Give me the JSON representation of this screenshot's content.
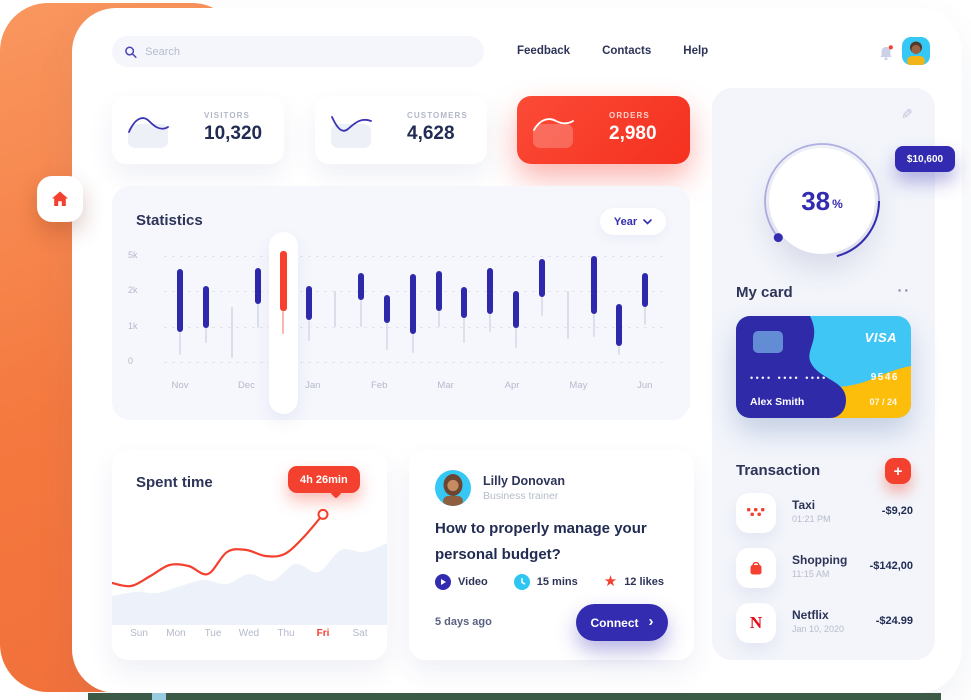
{
  "colors": {
    "accent_red": "#f4402e",
    "indigo": "#332cb0",
    "cyan": "#35c8f5",
    "yellow": "#fcbd0b",
    "orange_rail": "#f4793f"
  },
  "topbar": {
    "search_placeholder": "Search",
    "links": [
      "Feedback",
      "Contacts",
      "Help"
    ]
  },
  "stat_cards": [
    {
      "label": "VISITORS",
      "value": "10,320"
    },
    {
      "label": "CUSTOMERS",
      "value": "4,628"
    },
    {
      "label": "ORDERS",
      "value": "2,980"
    }
  ],
  "statistics": {
    "title": "Statistics",
    "period": "Year",
    "y_labels": [
      "5k",
      "2k",
      "1k",
      "0"
    ],
    "months": [
      "Nov",
      "Dec",
      "Jan",
      "Feb",
      "Mar",
      "Apr",
      "May",
      "Jun"
    ],
    "chart_data": {
      "type": "bar",
      "unit": "k",
      "ylim": [
        0,
        5
      ],
      "note": "vertical range bars, values in thousands; hot = highlighted red bar",
      "bars": [
        {
          "t": "bar",
          "hi": 3.9,
          "lo": 0.85,
          "w": 0.2
        },
        {
          "t": "bar",
          "hi": 2.5,
          "lo": 0.95,
          "w": 0.55
        },
        {
          "t": "thin",
          "hi": 1.55,
          "lo": 0.1
        },
        {
          "t": "bar",
          "hi": 4.0,
          "lo": 1.65,
          "w": 0.95
        },
        {
          "t": "hot",
          "hi": 5.4,
          "lo": 1.45,
          "w": 0.8
        },
        {
          "t": "bar",
          "hi": 2.45,
          "lo": 1.2,
          "w": 0.6
        },
        {
          "t": "thin",
          "hi": 2.0,
          "lo": 1.0
        },
        {
          "t": "bar",
          "hi": 3.6,
          "lo": 1.75,
          "w": 1.0
        },
        {
          "t": "bar",
          "hi": 1.9,
          "lo": 1.1,
          "w": 0.35
        },
        {
          "t": "bar",
          "hi": 3.5,
          "lo": 0.8,
          "w": 0.25
        },
        {
          "t": "bar",
          "hi": 3.7,
          "lo": 1.45,
          "w": 1.0
        },
        {
          "t": "bar",
          "hi": 2.35,
          "lo": 1.25,
          "w": 0.55
        },
        {
          "t": "bar",
          "hi": 4.0,
          "lo": 1.35,
          "w": 0.85
        },
        {
          "t": "bar",
          "hi": 2.0,
          "lo": 0.95,
          "w": 0.4
        },
        {
          "t": "bar",
          "hi": 4.8,
          "lo": 1.85,
          "w": 1.3
        },
        {
          "t": "thin",
          "hi": 2.0,
          "lo": 0.65
        },
        {
          "t": "bar",
          "hi": 5.0,
          "lo": 1.35,
          "w": 0.7
        },
        {
          "t": "bar",
          "hi": 1.65,
          "lo": 0.45,
          "w": 0.2
        },
        {
          "t": "bar",
          "hi": 3.6,
          "lo": 1.55,
          "w": 1.05
        }
      ]
    }
  },
  "donut": {
    "value": "38",
    "unit": "%",
    "badge": "$10,600"
  },
  "my_card": {
    "title": "My card",
    "menu": "··",
    "brand": "VISA",
    "masked_groups": "•••• •••• ••••",
    "last4": "9546",
    "holder": "Alex Smith",
    "expiry": "07 / 24"
  },
  "transactions": {
    "title": "Transaction",
    "add_label": "+",
    "items": [
      {
        "name": "Taxi",
        "time": "01:21 PM",
        "amount": "-$9,20",
        "icon": "taxi-icon"
      },
      {
        "name": "Shopping",
        "time": "11:15 AM",
        "amount": "-$142,00",
        "icon": "shopping-bag-icon"
      },
      {
        "name": "Netflix",
        "time": "Jan 10, 2020",
        "amount": "-$24.99",
        "icon": "netflix-icon",
        "icon_letter": "N"
      }
    ]
  },
  "spent_time": {
    "title": "Spent time",
    "tooltip": "4h 26min",
    "days": [
      "Sun",
      "Mon",
      "Tue",
      "Wed",
      "Thu",
      "Fri",
      "Sat"
    ],
    "active_day": "Fri",
    "chart_data": {
      "type": "line",
      "unit": "hours",
      "series": [
        {
          "name": "time spent (red line)",
          "values": [
            1.0,
            0.85,
            1.35,
            1.9,
            1.85,
            1.45,
            2.55,
            2.65,
            2.35,
            2.45,
            3.3,
            4.43
          ]
        },
        {
          "name": "background area",
          "values": [
            0.35,
            0.55,
            0.5,
            0.85,
            1.15,
            0.95,
            1.45,
            1.1,
            1.95,
            1.55,
            2.65,
            2.55,
            3.0
          ]
        }
      ],
      "highlight_value": "4h 26min on Fri"
    }
  },
  "article": {
    "author": "Lilly Donovan",
    "role": "Business trainer",
    "headline": "How to properly manage your personal budget?",
    "meta": [
      {
        "label": "Video"
      },
      {
        "label": "15 mins"
      },
      {
        "label": "12 likes"
      }
    ],
    "posted": "5 days ago",
    "cta": "Connect",
    "cta_chevron": "›"
  }
}
